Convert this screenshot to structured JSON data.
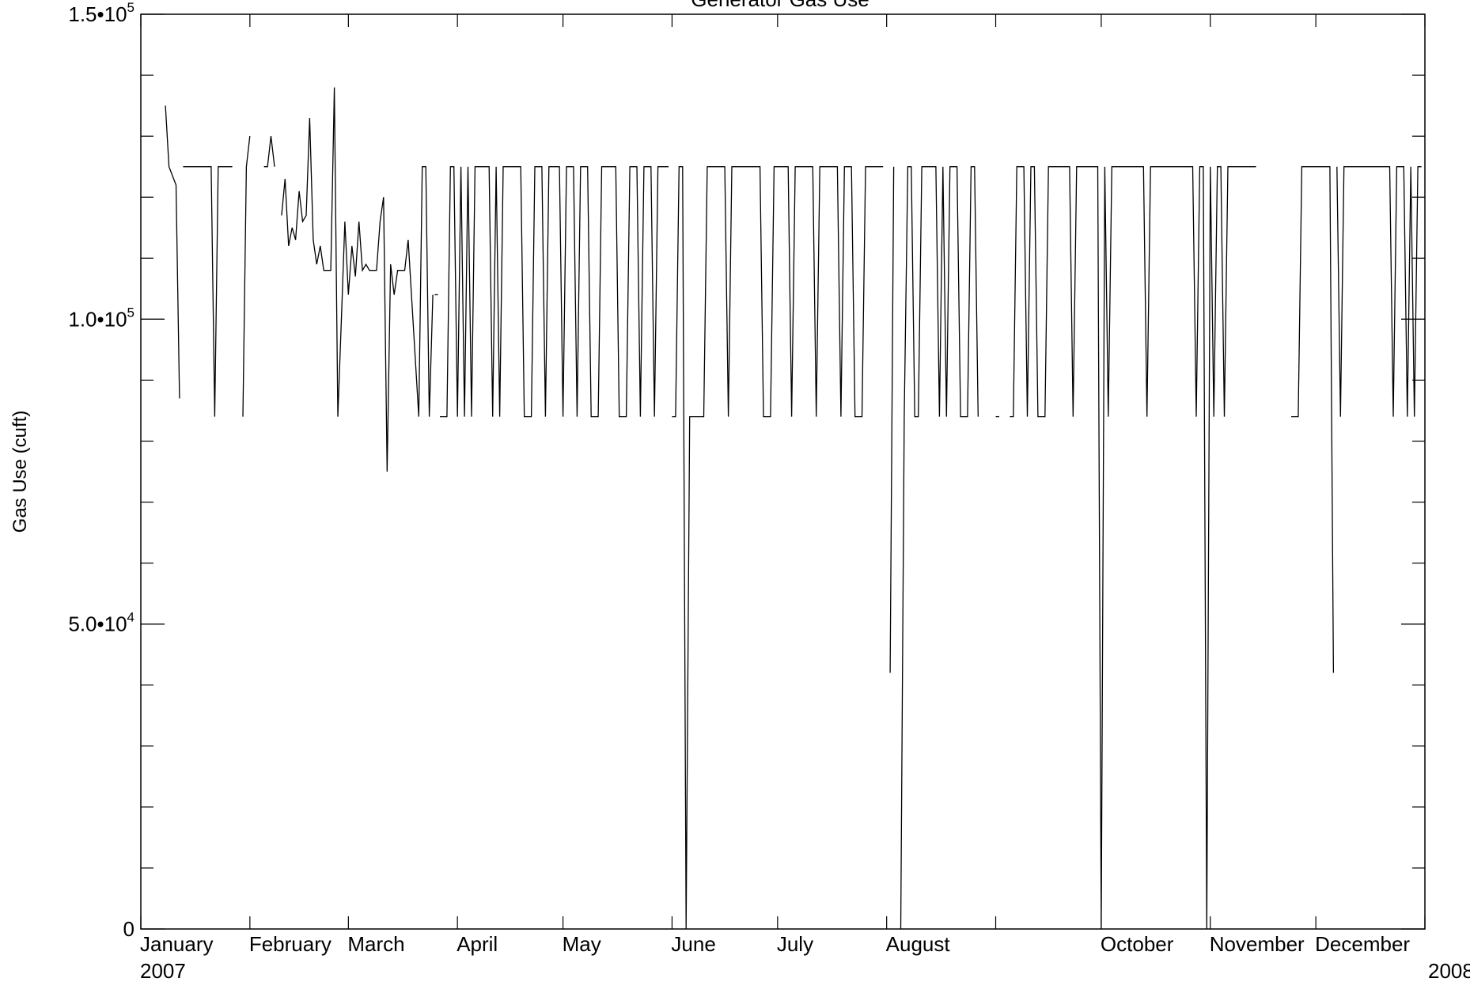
{
  "chart_data": {
    "type": "line",
    "title": "Generator Gas Use",
    "xlabel": "",
    "ylabel": "Gas Use (cuft)",
    "ylim": [
      0,
      150000
    ],
    "xlim": [
      "2007-01-01",
      "2008-01-01"
    ],
    "grid": false,
    "legend": "none",
    "line_color": "#000000",
    "y_ticks": [
      {
        "value": 0,
        "mantissa": "0",
        "exp": ""
      },
      {
        "value": 50000,
        "mantissa": "5.0•10",
        "exp": "4"
      },
      {
        "value": 100000,
        "mantissa": "1.0•10",
        "exp": "5"
      },
      {
        "value": 150000,
        "mantissa": "1.5•10",
        "exp": "5"
      }
    ],
    "y_minor_ticks": [
      10000,
      20000,
      30000,
      40000,
      60000,
      70000,
      80000,
      90000,
      110000,
      120000,
      130000,
      140000
    ],
    "x_ticks": [
      {
        "date": "2007-01-01",
        "label": "January",
        "sublabel": "2007"
      },
      {
        "date": "2007-02-01",
        "label": "February",
        "sublabel": ""
      },
      {
        "date": "2007-03-01",
        "label": "March",
        "sublabel": ""
      },
      {
        "date": "2007-04-01",
        "label": "April",
        "sublabel": ""
      },
      {
        "date": "2007-05-01",
        "label": "May",
        "sublabel": ""
      },
      {
        "date": "2007-06-01",
        "label": "June",
        "sublabel": ""
      },
      {
        "date": "2007-07-01",
        "label": "July",
        "sublabel": ""
      },
      {
        "date": "2007-08-01",
        "label": "August",
        "sublabel": ""
      },
      {
        "date": "2007-09-01",
        "label": "",
        "sublabel": ""
      },
      {
        "date": "2007-10-01",
        "label": "October",
        "sublabel": ""
      },
      {
        "date": "2007-11-01",
        "label": "November",
        "sublabel": ""
      },
      {
        "date": "2007-12-01",
        "label": "December",
        "sublabel": ""
      },
      {
        "date": "2008-01-01",
        "label": "",
        "sublabel": "2008"
      }
    ],
    "series": [
      {
        "segments": [
          [
            [
              "2007-01-08",
              135000
            ],
            [
              "2007-01-09",
              125000
            ],
            [
              "2007-01-11",
              122000
            ],
            [
              "2007-01-12",
              87000
            ]
          ],
          [
            [
              "2007-01-13",
              125000
            ],
            [
              "2007-01-21",
              125000
            ],
            [
              "2007-01-22",
              84000
            ],
            [
              "2007-01-23",
              125000
            ],
            [
              "2007-01-27",
              125000
            ]
          ],
          [
            [
              "2007-01-30",
              84000
            ],
            [
              "2007-01-31",
              125000
            ],
            [
              "2007-02-01",
              130000
            ]
          ],
          [
            [
              "2007-02-05",
              125000
            ],
            [
              "2007-02-06",
              125000
            ],
            [
              "2007-02-07",
              130000
            ],
            [
              "2007-02-08",
              125000
            ]
          ],
          [
            [
              "2007-02-10",
              117000
            ],
            [
              "2007-02-11",
              123000
            ],
            [
              "2007-02-12",
              112000
            ],
            [
              "2007-02-13",
              115000
            ],
            [
              "2007-02-14",
              113000
            ],
            [
              "2007-02-15",
              121000
            ],
            [
              "2007-02-16",
              116000
            ],
            [
              "2007-02-17",
              117000
            ],
            [
              "2007-02-18",
              133000
            ],
            [
              "2007-02-19",
              113000
            ],
            [
              "2007-02-20",
              109000
            ],
            [
              "2007-02-21",
              112000
            ],
            [
              "2007-02-22",
              108000
            ],
            [
              "2007-02-24",
              108000
            ],
            [
              "2007-02-25",
              138000
            ],
            [
              "2007-02-26",
              84000
            ],
            [
              "2007-02-27",
              100000
            ],
            [
              "2007-02-28",
              116000
            ],
            [
              "2007-03-01",
              104000
            ],
            [
              "2007-03-02",
              112000
            ],
            [
              "2007-03-03",
              107000
            ],
            [
              "2007-03-04",
              116000
            ],
            [
              "2007-03-05",
              108000
            ],
            [
              "2007-03-06",
              109000
            ],
            [
              "2007-03-07",
              108000
            ],
            [
              "2007-03-09",
              108000
            ],
            [
              "2007-03-10",
              116000
            ],
            [
              "2007-03-11",
              120000
            ],
            [
              "2007-03-12",
              75000
            ],
            [
              "2007-03-13",
              109000
            ],
            [
              "2007-03-14",
              104000
            ],
            [
              "2007-03-15",
              108000
            ],
            [
              "2007-03-17",
              108000
            ],
            [
              "2007-03-18",
              113000
            ],
            [
              "2007-03-21",
              84000
            ],
            [
              "2007-03-22",
              125000
            ],
            [
              "2007-03-23",
              125000
            ],
            [
              "2007-03-24",
              84000
            ],
            [
              "2007-03-25",
              104000
            ]
          ],
          [
            [
              "2007-03-26",
              104000
            ]
          ],
          [
            [
              "2007-03-27",
              84000
            ],
            [
              "2007-03-29",
              84000
            ],
            [
              "2007-03-30",
              125000
            ],
            [
              "2007-03-31",
              125000
            ],
            [
              "2007-04-01",
              84000
            ],
            [
              "2007-04-02",
              125000
            ],
            [
              "2007-04-03",
              84000
            ],
            [
              "2007-04-04",
              125000
            ],
            [
              "2007-04-05",
              84000
            ],
            [
              "2007-04-06",
              125000
            ],
            [
              "2007-04-10",
              125000
            ],
            [
              "2007-04-11",
              84000
            ],
            [
              "2007-04-12",
              125000
            ],
            [
              "2007-04-13",
              84000
            ],
            [
              "2007-04-14",
              125000
            ],
            [
              "2007-04-19",
              125000
            ],
            [
              "2007-04-20",
              84000
            ],
            [
              "2007-04-22",
              84000
            ],
            [
              "2007-04-23",
              125000
            ],
            [
              "2007-04-25",
              125000
            ],
            [
              "2007-04-26",
              84000
            ],
            [
              "2007-04-27",
              125000
            ],
            [
              "2007-04-30",
              125000
            ],
            [
              "2007-05-01",
              84000
            ],
            [
              "2007-05-02",
              125000
            ],
            [
              "2007-05-04",
              125000
            ],
            [
              "2007-05-05",
              84000
            ],
            [
              "2007-05-06",
              125000
            ],
            [
              "2007-05-08",
              125000
            ],
            [
              "2007-05-09",
              84000
            ],
            [
              "2007-05-11",
              84000
            ],
            [
              "2007-05-12",
              125000
            ],
            [
              "2007-05-16",
              125000
            ],
            [
              "2007-05-17",
              84000
            ],
            [
              "2007-05-19",
              84000
            ],
            [
              "2007-05-20",
              125000
            ],
            [
              "2007-05-22",
              125000
            ],
            [
              "2007-05-23",
              84000
            ],
            [
              "2007-05-24",
              125000
            ],
            [
              "2007-05-26",
              125000
            ],
            [
              "2007-05-27",
              84000
            ],
            [
              "2007-05-28",
              125000
            ],
            [
              "2007-05-31",
              125000
            ]
          ],
          [
            [
              "2007-06-01",
              84000
            ],
            [
              "2007-06-02",
              84000
            ],
            [
              "2007-06-03",
              125000
            ],
            [
              "2007-06-04",
              125000
            ],
            [
              "2007-06-05",
              0
            ],
            [
              "2007-06-06",
              84000
            ],
            [
              "2007-06-10",
              84000
            ],
            [
              "2007-06-11",
              125000
            ],
            [
              "2007-06-16",
              125000
            ],
            [
              "2007-06-17",
              84000
            ],
            [
              "2007-06-18",
              125000
            ],
            [
              "2007-06-26",
              125000
            ],
            [
              "2007-06-27",
              84000
            ],
            [
              "2007-06-29",
              84000
            ],
            [
              "2007-06-30",
              125000
            ],
            [
              "2007-07-04",
              125000
            ],
            [
              "2007-07-05",
              84000
            ],
            [
              "2007-07-06",
              125000
            ],
            [
              "2007-07-11",
              125000
            ],
            [
              "2007-07-12",
              84000
            ],
            [
              "2007-07-13",
              125000
            ],
            [
              "2007-07-18",
              125000
            ],
            [
              "2007-07-19",
              84000
            ],
            [
              "2007-07-20",
              125000
            ],
            [
              "2007-07-22",
              125000
            ],
            [
              "2007-07-23",
              84000
            ],
            [
              "2007-07-25",
              84000
            ],
            [
              "2007-07-26",
              125000
            ],
            [
              "2007-07-31",
              125000
            ]
          ],
          [
            [
              "2007-08-02",
              42000
            ],
            [
              "2007-08-03",
              125000
            ]
          ],
          [
            [
              "2007-08-05",
              0
            ],
            [
              "2007-08-06",
              84000
            ],
            [
              "2007-08-07",
              125000
            ],
            [
              "2007-08-08",
              125000
            ],
            [
              "2007-08-09",
              84000
            ],
            [
              "2007-08-10",
              84000
            ],
            [
              "2007-08-11",
              125000
            ],
            [
              "2007-08-15",
              125000
            ],
            [
              "2007-08-16",
              84000
            ],
            [
              "2007-08-17",
              125000
            ],
            [
              "2007-08-18",
              84000
            ],
            [
              "2007-08-19",
              125000
            ],
            [
              "2007-08-21",
              125000
            ],
            [
              "2007-08-22",
              84000
            ],
            [
              "2007-08-24",
              84000
            ],
            [
              "2007-08-25",
              125000
            ],
            [
              "2007-08-26",
              125000
            ],
            [
              "2007-08-27",
              84000
            ]
          ],
          [
            [
              "2007-09-01",
              84000
            ],
            [
              "2007-09-02",
              84000
            ]
          ],
          [
            [
              "2007-09-05",
              84000
            ],
            [
              "2007-09-06",
              84000
            ],
            [
              "2007-09-07",
              125000
            ],
            [
              "2007-09-09",
              125000
            ],
            [
              "2007-09-10",
              84000
            ],
            [
              "2007-09-11",
              125000
            ],
            [
              "2007-09-12",
              125000
            ],
            [
              "2007-09-13",
              84000
            ],
            [
              "2007-09-15",
              84000
            ],
            [
              "2007-09-16",
              125000
            ],
            [
              "2007-09-22",
              125000
            ],
            [
              "2007-09-23",
              84000
            ],
            [
              "2007-09-24",
              125000
            ],
            [
              "2007-09-30",
              125000
            ],
            [
              "2007-10-01",
              0
            ],
            [
              "2007-10-02",
              125000
            ],
            [
              "2007-10-03",
              84000
            ],
            [
              "2007-10-04",
              125000
            ],
            [
              "2007-10-13",
              125000
            ],
            [
              "2007-10-14",
              84000
            ],
            [
              "2007-10-15",
              125000
            ],
            [
              "2007-10-27",
              125000
            ],
            [
              "2007-10-28",
              84000
            ],
            [
              "2007-10-29",
              125000
            ],
            [
              "2007-10-30",
              125000
            ],
            [
              "2007-10-31",
              0
            ],
            [
              "2007-11-01",
              125000
            ],
            [
              "2007-11-02",
              84000
            ],
            [
              "2007-11-03",
              125000
            ],
            [
              "2007-11-04",
              125000
            ],
            [
              "2007-11-05",
              84000
            ],
            [
              "2007-11-06",
              125000
            ],
            [
              "2007-11-14",
              125000
            ]
          ],
          [
            [
              "2007-11-24",
              84000
            ],
            [
              "2007-11-26",
              84000
            ],
            [
              "2007-11-27",
              125000
            ],
            [
              "2007-12-05",
              125000
            ],
            [
              "2007-12-06",
              42000
            ]
          ],
          [
            [
              "2007-12-07",
              125000
            ],
            [
              "2007-12-08",
              84000
            ],
            [
              "2007-12-09",
              125000
            ],
            [
              "2007-12-22",
              125000
            ],
            [
              "2007-12-23",
              84000
            ],
            [
              "2007-12-24",
              125000
            ],
            [
              "2007-12-26",
              125000
            ],
            [
              "2007-12-27",
              84000
            ],
            [
              "2007-12-28",
              125000
            ],
            [
              "2007-12-29",
              84000
            ],
            [
              "2007-12-30",
              125000
            ],
            [
              "2007-12-31",
              125000
            ]
          ]
        ]
      }
    ]
  }
}
